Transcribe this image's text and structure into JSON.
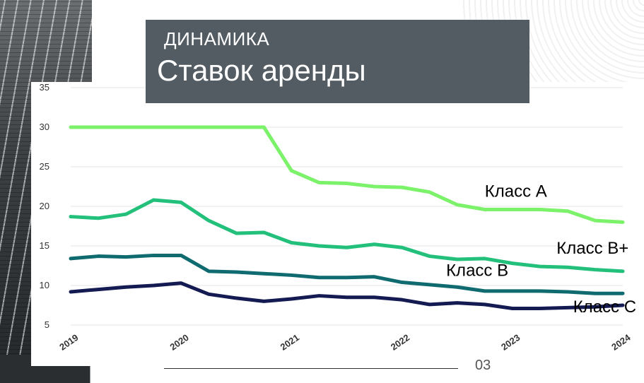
{
  "header": {
    "title_top": "ДИНАМИКА",
    "title_main": "Ставок аренды"
  },
  "footer": {
    "page_number": "03"
  },
  "colors": {
    "title_box": "#535c63",
    "class_a": "#7cf26a",
    "class_b_plus": "#22c07a",
    "class_b": "#0f6b70",
    "class_c": "#141a52"
  },
  "chart_data": {
    "type": "line",
    "title": "",
    "xlabel": "",
    "ylabel": "",
    "ylim": [
      5,
      35
    ],
    "y_ticks": [
      "5",
      "10",
      "15",
      "20",
      "25",
      "30",
      "35"
    ],
    "x_ticks": [
      "2019",
      "2020",
      "2021",
      "2022",
      "2023",
      "2024"
    ],
    "x": [
      2019.0,
      2019.25,
      2019.5,
      2019.75,
      2020.0,
      2020.25,
      2020.5,
      2020.75,
      2021.0,
      2021.25,
      2021.5,
      2021.75,
      2022.0,
      2022.25,
      2022.5,
      2022.75,
      2023.0,
      2023.25,
      2023.5,
      2023.75,
      2024.0
    ],
    "grid": true,
    "legend": "inline labels",
    "series": [
      {
        "name": "Класс А",
        "values": [
          30,
          30,
          30,
          30,
          30,
          30,
          30,
          30,
          24.5,
          23,
          22.9,
          22.5,
          22.4,
          21.8,
          20.2,
          19.6,
          19.6,
          19.6,
          19.4,
          18.2,
          18.0
        ]
      },
      {
        "name": "Класс В+",
        "values": [
          18.7,
          18.5,
          19.0,
          20.8,
          20.5,
          18.2,
          16.6,
          16.7,
          15.4,
          15.0,
          14.8,
          15.2,
          14.8,
          13.7,
          13.3,
          13.4,
          12.8,
          12.4,
          12.3,
          12.0,
          11.8
        ]
      },
      {
        "name": "Класс В",
        "values": [
          13.4,
          13.7,
          13.6,
          13.8,
          13.8,
          11.8,
          11.7,
          11.5,
          11.3,
          11.0,
          11.0,
          11.1,
          10.4,
          10.1,
          9.8,
          9.3,
          9.3,
          9.3,
          9.2,
          9.0,
          9.0
        ]
      },
      {
        "name": "Класс С",
        "values": [
          9.2,
          9.5,
          9.8,
          10.0,
          10.3,
          8.9,
          8.4,
          8.0,
          8.3,
          8.7,
          8.5,
          8.5,
          8.2,
          7.6,
          7.8,
          7.6,
          7.1,
          7.1,
          7.2,
          7.3,
          7.5
        ]
      }
    ]
  }
}
